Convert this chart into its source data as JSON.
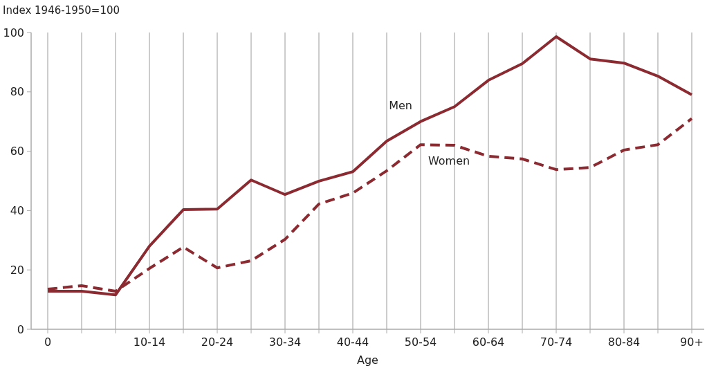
{
  "chart_data": {
    "type": "line",
    "xlabel": "Age",
    "ylabel": "Index 1946-1950=100",
    "categories": [
      "0",
      null,
      null,
      "10-14",
      null,
      "20-24",
      null,
      "30-34",
      null,
      "40-44",
      null,
      "50-54",
      null,
      "60-64",
      null,
      "70-74",
      null,
      "80-84",
      null,
      "90+"
    ],
    "ylim": [
      0,
      100
    ],
    "yticks": [
      0,
      20,
      40,
      60,
      80,
      100
    ],
    "grid": "x",
    "series": [
      {
        "name": "Men",
        "color": "#8b2a30",
        "line_style": "solid",
        "values": [
          12.8,
          12.8,
          11.6,
          28,
          40.3,
          40.5,
          50.3,
          45.4,
          49.9,
          53.1,
          63.4,
          70,
          75,
          83.9,
          89.5,
          98.6,
          91.1,
          89.7,
          85.3,
          79
        ]
      },
      {
        "name": "Women",
        "color": "#8b2a30",
        "line_style": "dashed",
        "values": [
          13.5,
          14.7,
          12.8,
          20.5,
          27.7,
          20.7,
          23.1,
          30.3,
          42.2,
          45.9,
          53.4,
          62.2,
          62,
          58.3,
          57.4,
          53.8,
          54.5,
          60.4,
          62.2,
          71
        ]
      }
    ]
  }
}
